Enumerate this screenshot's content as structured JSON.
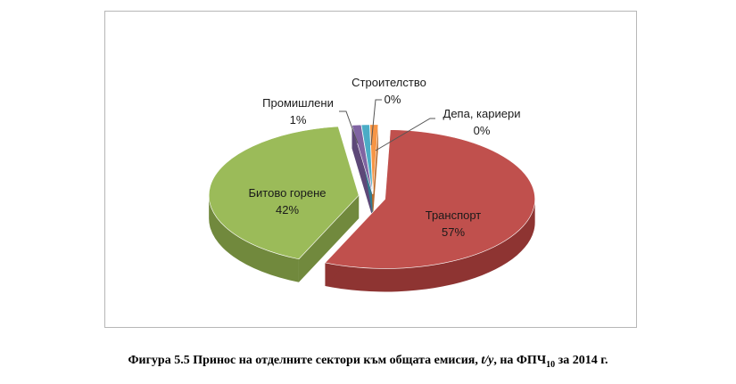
{
  "chart_data": {
    "type": "pie",
    "slices": [
      {
        "name": "Транспорт",
        "value": 57,
        "label": "57%",
        "color": "#c0504d",
        "side": "#8e3432"
      },
      {
        "name": "Битово горене",
        "value": 42,
        "label": "42%",
        "color": "#9bbb59",
        "side": "#71893d"
      },
      {
        "name": "Промишлени",
        "value": 1,
        "label": "1%",
        "color": "#8064a2",
        "side": "#5d4878"
      },
      {
        "name": "Строителство",
        "value": 0,
        "label": "0%",
        "color": "#4bacc6",
        "side": "#337b8f"
      },
      {
        "name": "Депа, кариери",
        "value": 0,
        "label": "0%",
        "color": "#f79646",
        "side": "#b86a2c"
      }
    ]
  },
  "caption": {
    "prefix": "Фигура 5.5 Принос на отделните сектори към общата емисия, ",
    "unit": "t/y",
    "mid": ", на ФПЧ",
    "sub": "10",
    "suffix": " за 2014 г."
  }
}
